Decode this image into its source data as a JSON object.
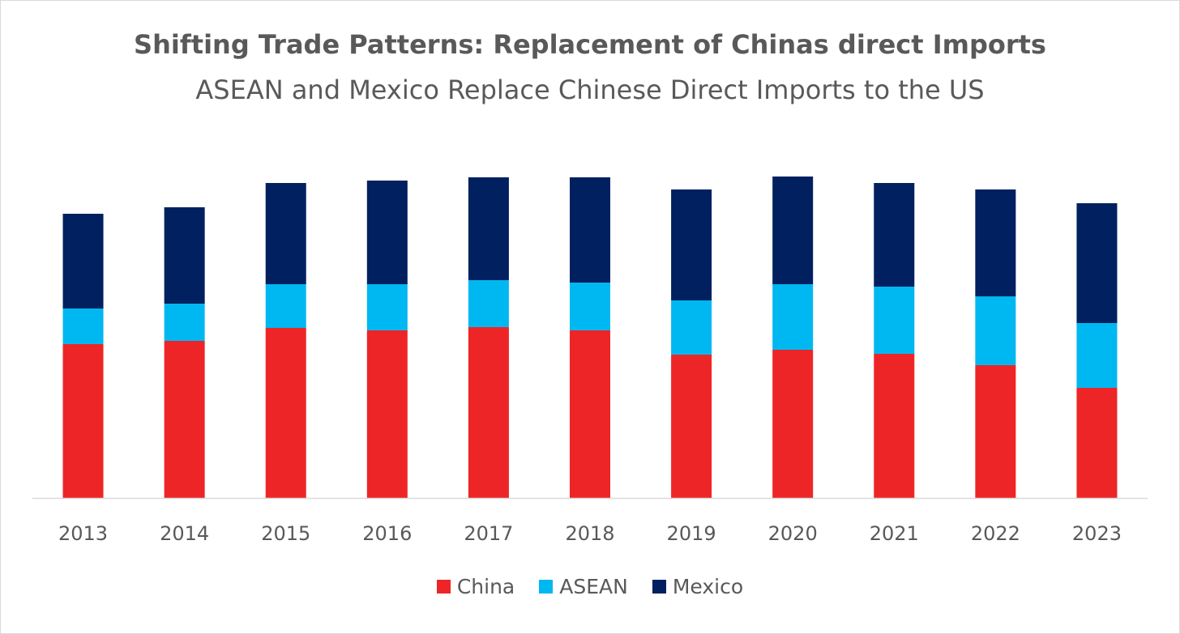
{
  "chart_data": {
    "type": "bar",
    "stacked": true,
    "title": "Shifting Trade Patterns: Replacement of Chinas direct Imports",
    "subtitle": "ASEAN and Mexico Replace Chinese Direct Imports to the US",
    "categories": [
      "2013",
      "2014",
      "2015",
      "2016",
      "2017",
      "2018",
      "2019",
      "2020",
      "2021",
      "2022",
      "2023"
    ],
    "series": [
      {
        "name": "China",
        "color": "#ee2526",
        "values": [
          190,
          194,
          210,
          207,
          211,
          207,
          177,
          183,
          178,
          164,
          136
        ]
      },
      {
        "name": "ASEAN",
        "color": "#00b8f1",
        "values": [
          44,
          46,
          54,
          57,
          58,
          59,
          67,
          81,
          83,
          85,
          80
        ]
      },
      {
        "name": "Mexico",
        "color": "#002060",
        "values": [
          117,
          119,
          125,
          128,
          127,
          130,
          137,
          133,
          128,
          132,
          148
        ]
      }
    ],
    "ylim": [
      0,
      420
    ],
    "grid": false,
    "legend_position": "bottom"
  }
}
